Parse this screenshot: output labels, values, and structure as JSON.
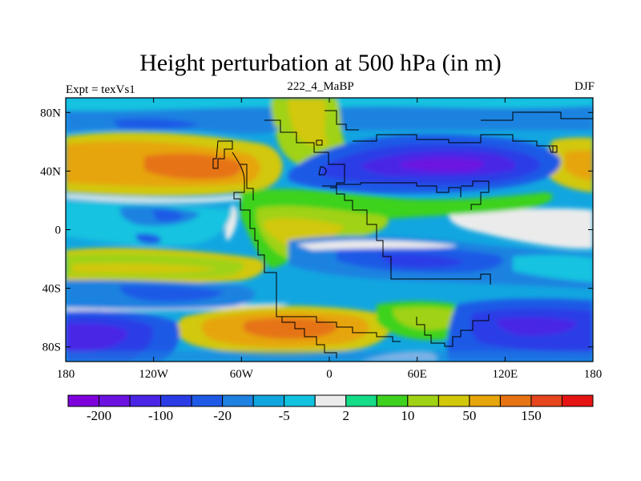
{
  "title": "Height perturbation at 500 hPa (in m)",
  "left_label": "Expt = texVs1",
  "center_label": "222_4_MaBP",
  "right_label": "DJF",
  "map": {
    "lon_range": [
      -180,
      180
    ],
    "lat_range": [
      -90,
      90
    ],
    "lat_ticks": [
      {
        "value": 80,
        "label": "80N"
      },
      {
        "value": 40,
        "label": "40N"
      },
      {
        "value": 0,
        "label": "0"
      },
      {
        "value": -40,
        "label": "40S"
      },
      {
        "value": -80,
        "label": "80S"
      }
    ],
    "lon_ticks": [
      {
        "value": -180,
        "label": "180"
      },
      {
        "value": -120,
        "label": "120W"
      },
      {
        "value": -60,
        "label": "60W"
      },
      {
        "value": 0,
        "label": "0"
      },
      {
        "value": 60,
        "label": "60E"
      },
      {
        "value": 120,
        "label": "120E"
      },
      {
        "value": 180,
        "label": "180"
      }
    ]
  },
  "colorbar": {
    "colors": [
      "#7e00db",
      "#6c12e0",
      "#4a25e6",
      "#2a3ce6",
      "#1e5ae6",
      "#1f82e0",
      "#12a6e0",
      "#12c3e0",
      "#ebebeb",
      "#14dc87",
      "#3ed21e",
      "#a0d214",
      "#d2c80a",
      "#e6a50a",
      "#e67314",
      "#e6461e",
      "#e61414"
    ],
    "labels": [
      {
        "after_box": 1,
        "text": "-200"
      },
      {
        "after_box": 3,
        "text": "-100"
      },
      {
        "after_box": 5,
        "text": "-20"
      },
      {
        "after_box": 7,
        "text": "-5"
      },
      {
        "after_box": 9,
        "text": "2"
      },
      {
        "after_box": 11,
        "text": "10"
      },
      {
        "after_box": 13,
        "text": "50"
      },
      {
        "after_box": 15,
        "text": "150"
      }
    ]
  }
}
